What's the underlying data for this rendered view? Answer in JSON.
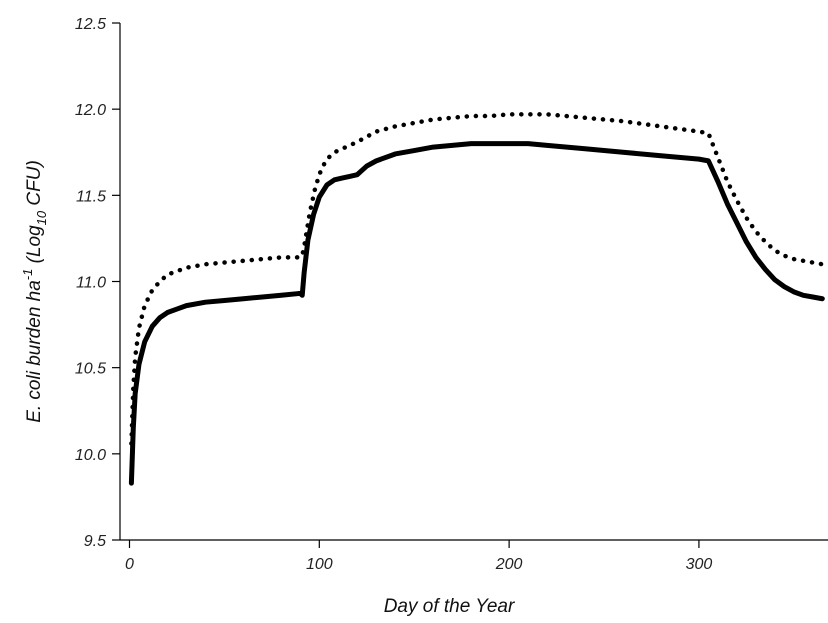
{
  "chart_data": {
    "type": "line",
    "title": "",
    "xlabel": "Day of the Year",
    "ylabel": {
      "parts": [
        {
          "text": "E. coli burden ha",
          "shift": "none"
        },
        {
          "text": "-1",
          "shift": "super"
        },
        {
          "text": " (Log",
          "shift": "none"
        },
        {
          "text": "10",
          "shift": "sub"
        },
        {
          "text": " CFU)",
          "shift": "none"
        }
      ]
    },
    "xlim": [
      -5,
      368
    ],
    "ylim": [
      9.5,
      12.5
    ],
    "xticks": [
      0,
      100,
      200,
      300
    ],
    "xtick_labels": [
      "0",
      "100",
      "200",
      "300"
    ],
    "yticks": [
      9.5,
      10.0,
      10.5,
      11.0,
      11.5,
      12.0,
      12.5
    ],
    "ytick_labels": [
      "9.5",
      "10.0",
      "10.5",
      "11.0",
      "11.5",
      "12.0",
      "12.5"
    ],
    "grid": false,
    "legend": "none",
    "series": [
      {
        "style": "solid",
        "color": "#000000",
        "x": [
          1,
          2,
          3,
          5,
          8,
          12,
          16,
          20,
          25,
          30,
          40,
          50,
          60,
          70,
          80,
          89,
          90,
          91,
          92,
          94,
          97,
          100,
          104,
          108,
          112,
          116,
          120,
          122,
          125,
          130,
          140,
          150,
          160,
          170,
          180,
          190,
          200,
          210,
          220,
          240,
          260,
          280,
          300,
          305,
          310,
          315,
          320,
          325,
          330,
          335,
          340,
          345,
          350,
          355,
          360,
          365
        ],
        "y": [
          9.83,
          10.15,
          10.35,
          10.52,
          10.65,
          10.74,
          10.79,
          10.82,
          10.84,
          10.86,
          10.88,
          10.89,
          10.9,
          10.91,
          10.92,
          10.93,
          10.93,
          10.92,
          11.05,
          11.24,
          11.39,
          11.49,
          11.56,
          11.59,
          11.6,
          11.61,
          11.62,
          11.64,
          11.67,
          11.7,
          11.74,
          11.76,
          11.78,
          11.79,
          11.8,
          11.8,
          11.8,
          11.8,
          11.79,
          11.77,
          11.75,
          11.73,
          11.71,
          11.7,
          11.58,
          11.45,
          11.34,
          11.23,
          11.14,
          11.07,
          11.01,
          10.97,
          10.94,
          10.92,
          10.91,
          10.9
        ]
      },
      {
        "style": "dotted",
        "color": "#000000",
        "x": [
          1,
          2,
          3,
          5,
          8,
          12,
          16,
          20,
          25,
          30,
          40,
          50,
          60,
          70,
          80,
          90,
          91,
          92,
          95,
          98,
          101,
          104,
          108,
          112,
          116,
          120,
          125,
          130,
          140,
          150,
          160,
          170,
          180,
          190,
          200,
          210,
          220,
          240,
          260,
          280,
          300,
          305,
          310,
          315,
          320,
          325,
          330,
          335,
          340,
          345,
          350,
          355,
          360,
          365
        ],
        "y": [
          10.06,
          10.38,
          10.56,
          10.73,
          10.86,
          10.95,
          11.0,
          11.04,
          11.06,
          11.08,
          11.1,
          11.11,
          11.12,
          11.13,
          11.14,
          11.14,
          11.15,
          11.2,
          11.4,
          11.55,
          11.65,
          11.71,
          11.75,
          11.77,
          11.79,
          11.81,
          11.84,
          11.87,
          11.9,
          11.92,
          11.94,
          11.95,
          11.96,
          11.96,
          11.97,
          11.97,
          11.97,
          11.95,
          11.93,
          11.9,
          11.87,
          11.86,
          11.72,
          11.58,
          11.47,
          11.37,
          11.29,
          11.23,
          11.18,
          11.15,
          11.13,
          11.12,
          11.11,
          11.1
        ]
      }
    ]
  }
}
